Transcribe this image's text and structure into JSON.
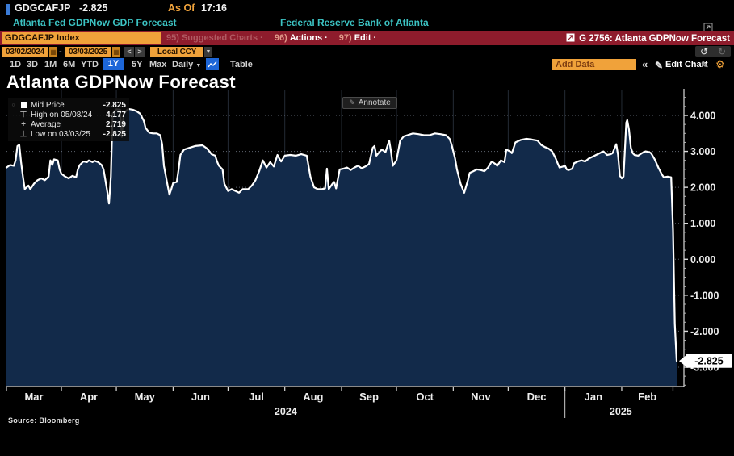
{
  "terminal": {
    "security": "GDGCAFJP",
    "last_value": "-2.825",
    "as_of_label": "As Of",
    "as_of_time": "17:16",
    "description": "Atlanta Fed GDPNow GDP Forecast",
    "source_org": "Federal Reserve Bank of Atlanta",
    "ticker_field": "GDGCAFJP Index",
    "menu": {
      "suggested_num": "95)",
      "suggested_label": "Suggested Charts ·",
      "actions_num": "96)",
      "actions_label": "Actions ·",
      "edit_num": "97)",
      "edit_label": "Edit ·",
      "chart_tag": "G 2756: Atlanta GDPNow Forecast"
    },
    "date_from": "03/02/2024",
    "date_to": "03/03/2025",
    "range_sep": "-",
    "currency": "Local CCY",
    "periods": [
      "1D",
      "3D",
      "1M",
      "6M",
      "YTD",
      "1Y",
      "5Y",
      "Max"
    ],
    "active_period": "1Y",
    "frequency": "Daily",
    "table_label": "Table",
    "add_data_placeholder": "Add Data",
    "collapse_label": "«",
    "edit_chart_label": "Edit Chart"
  },
  "icons": {
    "calendar": "▦",
    "prev": "<",
    "next": ">",
    "undo": "↺",
    "redo": "↻",
    "dropdown": "▼",
    "pencil": "✎",
    "gear": "⚙",
    "avg_marker": "+",
    "high_marker": "⊤",
    "low_marker": "⊥",
    "legend_toggle": "○"
  },
  "chart": {
    "title": "Atlanta GDPNow Forecast",
    "annotate_label": "Annotate",
    "legend": [
      {
        "label": "Mid Price",
        "value": "-2.825"
      },
      {
        "label": "High on 05/08/24",
        "value": "4.177"
      },
      {
        "label": "Average",
        "value": "2.719"
      },
      {
        "label": "Low on 03/03/25",
        "value": "-2.825"
      }
    ],
    "last_badge": "-2.825",
    "source": "Source: Bloomberg"
  },
  "colors": {
    "accent_orange": "#f0a23a",
    "bar_red": "#8e1c2c",
    "teal": "#3cc3c3",
    "blue": "#1d66d8",
    "area_fill": "#122a4a",
    "line": "#ffffff",
    "grid_h": "rgba(170,182,202,0.55)",
    "grid_v": "rgba(120,142,175,0.30)",
    "axis": "#dcdcdc",
    "badge_bg": "#ffffff"
  },
  "chart_data": {
    "type": "area",
    "title": "Atlanta GDPNow Forecast",
    "series_name": "Mid Price",
    "x_unit": "days since 03/02/2024",
    "x_range_dates": [
      "03/02/2024",
      "03/03/2025"
    ],
    "ylim": [
      -3.55,
      4.74
    ],
    "y_ticks": [
      4,
      3,
      2,
      1,
      0,
      -1,
      -2,
      -3
    ],
    "y_tick_labels": [
      "4.000",
      "3.000",
      "2.000",
      "1.000",
      "0.000",
      "-1.000",
      "-2.000",
      "-3.000"
    ],
    "grid": true,
    "legend_position": "top-left",
    "stats": {
      "last": -2.825,
      "high": 4.177,
      "high_date": "05/08/24",
      "average": 2.719,
      "low": -2.825,
      "low_date": "03/03/25"
    },
    "months": [
      {
        "label": "Mar",
        "start": 0,
        "end": 30
      },
      {
        "label": "Apr",
        "start": 30,
        "end": 60
      },
      {
        "label": "May",
        "start": 60,
        "end": 91
      },
      {
        "label": "Jun",
        "start": 91,
        "end": 121
      },
      {
        "label": "Jul",
        "start": 121,
        "end": 152
      },
      {
        "label": "Aug",
        "start": 152,
        "end": 183
      },
      {
        "label": "Sep",
        "start": 183,
        "end": 213
      },
      {
        "label": "Oct",
        "start": 213,
        "end": 244
      },
      {
        "label": "Nov",
        "start": 244,
        "end": 274
      },
      {
        "label": "Dec",
        "start": 274,
        "end": 305
      },
      {
        "label": "Jan",
        "start": 305,
        "end": 336
      },
      {
        "label": "Feb",
        "start": 336,
        "end": 364
      }
    ],
    "years": [
      {
        "label": "2024",
        "center_day": 152.5
      },
      {
        "label": "2025",
        "center_day": 335.5
      }
    ],
    "year_separator_day": 305,
    "points": [
      [
        0,
        2.55
      ],
      [
        2,
        2.62
      ],
      [
        4,
        2.6
      ],
      [
        5,
        2.75
      ],
      [
        6,
        3.15
      ],
      [
        7,
        3.18
      ],
      [
        8,
        2.7
      ],
      [
        9,
        2.3
      ],
      [
        10,
        1.95
      ],
      [
        12,
        2.05
      ],
      [
        13,
        1.95
      ],
      [
        15,
        2.1
      ],
      [
        17,
        2.2
      ],
      [
        19,
        2.25
      ],
      [
        21,
        2.2
      ],
      [
        23,
        2.3
      ],
      [
        24,
        2.75
      ],
      [
        25,
        2.62
      ],
      [
        26,
        2.78
      ],
      [
        28,
        2.75
      ],
      [
        29,
        2.5
      ],
      [
        30,
        2.38
      ],
      [
        32,
        2.3
      ],
      [
        34,
        2.25
      ],
      [
        36,
        2.32
      ],
      [
        38,
        2.28
      ],
      [
        39,
        2.5
      ],
      [
        40,
        2.62
      ],
      [
        42,
        2.72
      ],
      [
        44,
        2.7
      ],
      [
        45,
        2.75
      ],
      [
        47,
        2.7
      ],
      [
        48,
        2.74
      ],
      [
        50,
        2.7
      ],
      [
        52,
        2.62
      ],
      [
        53,
        2.5
      ],
      [
        54,
        2.2
      ],
      [
        55,
        1.9
      ],
      [
        56,
        1.55
      ],
      [
        57,
        2.3
      ],
      [
        58,
        4.05
      ],
      [
        60,
        4.17
      ],
      [
        62,
        4.16
      ],
      [
        63,
        3.4
      ],
      [
        64,
        4.05
      ],
      [
        66,
        4.16
      ],
      [
        67,
        4.177
      ],
      [
        69,
        4.16
      ],
      [
        71,
        4.12
      ],
      [
        73,
        4.05
      ],
      [
        75,
        3.85
      ],
      [
        76,
        3.65
      ],
      [
        78,
        3.52
      ],
      [
        80,
        3.5
      ],
      [
        82,
        3.5
      ],
      [
        84,
        3.45
      ],
      [
        85,
        3.2
      ],
      [
        86,
        2.6
      ],
      [
        88,
        2.05
      ],
      [
        89,
        1.8
      ],
      [
        90,
        1.95
      ],
      [
        91,
        2.12
      ],
      [
        93,
        2.15
      ],
      [
        94,
        2.5
      ],
      [
        95,
        2.9
      ],
      [
        97,
        3.05
      ],
      [
        100,
        3.1
      ],
      [
        103,
        3.15
      ],
      [
        107,
        3.17
      ],
      [
        109,
        3.1
      ],
      [
        110,
        3.05
      ],
      [
        112,
        2.92
      ],
      [
        114,
        2.88
      ],
      [
        115,
        2.72
      ],
      [
        116,
        2.6
      ],
      [
        118,
        2.5
      ],
      [
        119,
        2.1
      ],
      [
        121,
        1.9
      ],
      [
        123,
        1.95
      ],
      [
        125,
        1.9
      ],
      [
        127,
        1.85
      ],
      [
        129,
        1.95
      ],
      [
        132,
        1.95
      ],
      [
        134,
        2.05
      ],
      [
        136,
        2.2
      ],
      [
        138,
        2.45
      ],
      [
        140,
        2.75
      ],
      [
        141,
        2.65
      ],
      [
        142,
        2.55
      ],
      [
        144,
        2.7
      ],
      [
        146,
        2.58
      ],
      [
        148,
        2.9
      ],
      [
        149,
        2.8
      ],
      [
        150,
        2.72
      ],
      [
        152,
        2.88
      ],
      [
        155,
        2.9
      ],
      [
        158,
        2.88
      ],
      [
        161,
        2.92
      ],
      [
        164,
        2.88
      ],
      [
        166,
        2.3
      ],
      [
        168,
        2.0
      ],
      [
        170,
        1.95
      ],
      [
        172,
        1.95
      ],
      [
        174,
        1.97
      ],
      [
        175,
        2.52
      ],
      [
        176,
        1.95
      ],
      [
        178,
        2.1
      ],
      [
        179,
        2.15
      ],
      [
        180,
        1.97
      ],
      [
        182,
        2.5
      ],
      [
        184,
        2.52
      ],
      [
        186,
        2.55
      ],
      [
        188,
        2.48
      ],
      [
        190,
        2.55
      ],
      [
        192,
        2.6
      ],
      [
        194,
        2.53
      ],
      [
        196,
        2.58
      ],
      [
        198,
        2.65
      ],
      [
        200,
        3.1
      ],
      [
        201,
        3.15
      ],
      [
        202,
        2.88
      ],
      [
        204,
        3.0
      ],
      [
        205,
        3.05
      ],
      [
        207,
        2.98
      ],
      [
        209,
        3.3
      ],
      [
        210,
        3.0
      ],
      [
        211,
        2.6
      ],
      [
        213,
        2.75
      ],
      [
        215,
        3.3
      ],
      [
        217,
        3.42
      ],
      [
        219,
        3.45
      ],
      [
        222,
        3.5
      ],
      [
        225,
        3.48
      ],
      [
        228,
        3.45
      ],
      [
        231,
        3.45
      ],
      [
        234,
        3.5
      ],
      [
        237,
        3.48
      ],
      [
        240,
        3.45
      ],
      [
        242,
        3.35
      ],
      [
        243,
        3.2
      ],
      [
        245,
        2.8
      ],
      [
        246,
        2.5
      ],
      [
        248,
        2.1
      ],
      [
        250,
        1.85
      ],
      [
        252,
        2.2
      ],
      [
        253,
        2.4
      ],
      [
        255,
        2.45
      ],
      [
        257,
        2.5
      ],
      [
        259,
        2.48
      ],
      [
        261,
        2.45
      ],
      [
        263,
        2.55
      ],
      [
        265,
        2.72
      ],
      [
        267,
        2.65
      ],
      [
        268,
        2.6
      ],
      [
        270,
        2.75
      ],
      [
        272,
        2.7
      ],
      [
        273,
        3.05
      ],
      [
        275,
        3.0
      ],
      [
        276,
        2.95
      ],
      [
        278,
        3.25
      ],
      [
        281,
        3.32
      ],
      [
        284,
        3.35
      ],
      [
        287,
        3.33
      ],
      [
        290,
        3.3
      ],
      [
        292,
        3.18
      ],
      [
        294,
        3.12
      ],
      [
        296,
        3.08
      ],
      [
        298,
        3.0
      ],
      [
        300,
        2.8
      ],
      [
        301,
        2.67
      ],
      [
        302,
        2.55
      ],
      [
        304,
        2.58
      ],
      [
        305,
        2.6
      ],
      [
        306,
        2.5
      ],
      [
        307,
        2.48
      ],
      [
        309,
        2.52
      ],
      [
        310,
        2.67
      ],
      [
        312,
        2.72
      ],
      [
        314,
        2.75
      ],
      [
        316,
        2.72
      ],
      [
        318,
        2.8
      ],
      [
        320,
        2.85
      ],
      [
        322,
        2.9
      ],
      [
        324,
        2.95
      ],
      [
        326,
        3.0
      ],
      [
        328,
        2.9
      ],
      [
        330,
        2.92
      ],
      [
        331,
        2.95
      ],
      [
        333,
        3.2
      ],
      [
        334,
        2.9
      ],
      [
        335,
        2.32
      ],
      [
        336,
        2.25
      ],
      [
        337,
        2.3
      ],
      [
        338.5,
        3.8
      ],
      [
        339,
        3.87
      ],
      [
        340,
        3.6
      ],
      [
        341,
        3.1
      ],
      [
        342,
        2.95
      ],
      [
        343,
        2.9
      ],
      [
        345,
        2.88
      ],
      [
        347,
        2.95
      ],
      [
        349,
        3.0
      ],
      [
        351,
        2.98
      ],
      [
        352,
        2.95
      ],
      [
        354,
        2.78
      ],
      [
        356,
        2.55
      ],
      [
        358,
        2.35
      ],
      [
        359,
        2.28
      ],
      [
        361,
        2.3
      ],
      [
        363,
        2.28
      ],
      [
        364,
        0.8
      ],
      [
        365,
        -1.8
      ],
      [
        366,
        -2.825
      ]
    ]
  }
}
